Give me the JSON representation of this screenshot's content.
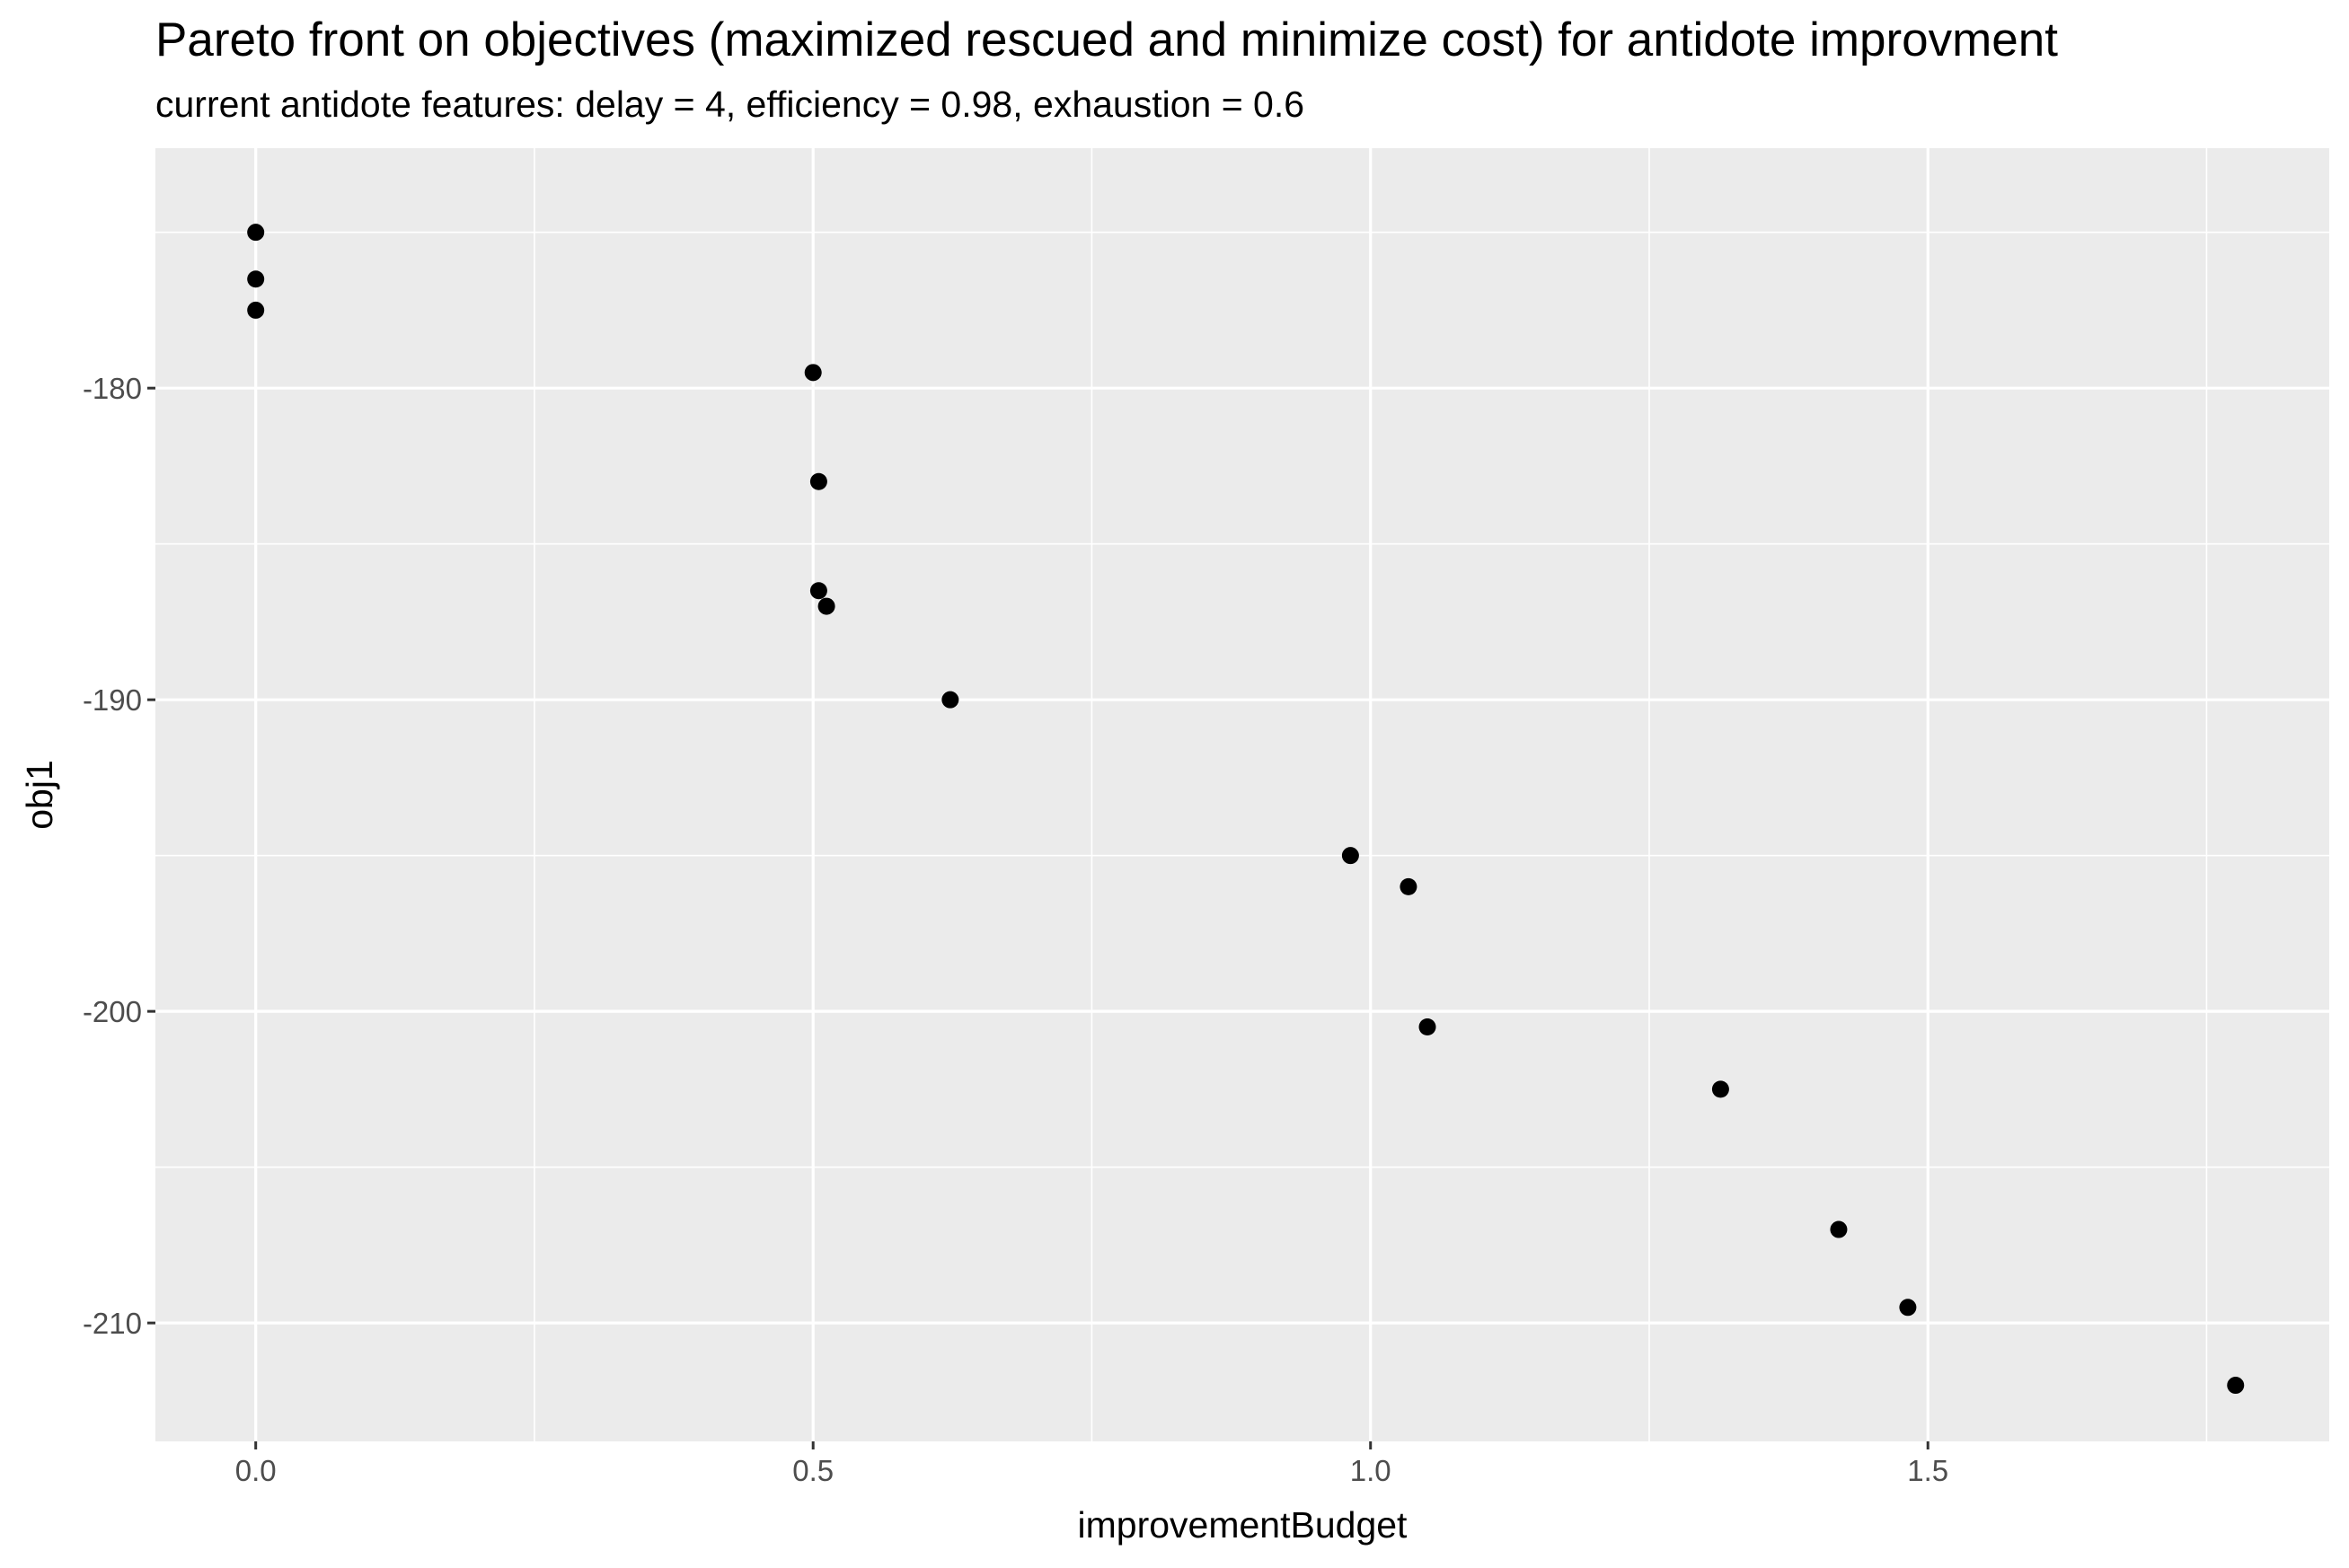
{
  "chart_data": {
    "type": "scatter",
    "title": "Pareto front on objectives (maximized rescued and minimize cost) for antidote improvment",
    "subtitle": "current antidote features: delay = 4, efficiency = 0.98, exhaustion = 0.6",
    "xlabel": "improvementBudget",
    "ylabel": "obj1",
    "xlim": [
      -0.09,
      1.86
    ],
    "ylim": [
      -213.8,
      -172.3
    ],
    "x_ticks": [
      0.0,
      0.5,
      1.0,
      1.5
    ],
    "x_tick_labels": [
      "0.0",
      "0.5",
      "1.0",
      "1.5"
    ],
    "y_ticks": [
      -180,
      -190,
      -200,
      -210
    ],
    "y_tick_labels": [
      "-180",
      "-190",
      "-200",
      "-210"
    ],
    "x_minor": [
      0.25,
      0.75,
      1.25,
      1.75
    ],
    "y_minor": [
      -175,
      -185,
      -195,
      -205
    ],
    "grid": true,
    "legend": "none",
    "colors": {
      "panel": "#ebebeb",
      "grid": "#ffffff",
      "point": "#000000",
      "tick_label": "#4d4d4d"
    },
    "series": [
      {
        "points": [
          {
            "x": 0.0,
            "y": -175.0
          },
          {
            "x": 0.0,
            "y": -176.5
          },
          {
            "x": 0.0,
            "y": -177.5
          },
          {
            "x": 0.5,
            "y": -179.5
          },
          {
            "x": 0.505,
            "y": -183.0
          },
          {
            "x": 0.505,
            "y": -186.5
          },
          {
            "x": 0.512,
            "y": -187.0
          },
          {
            "x": 0.623,
            "y": -190.0
          },
          {
            "x": 0.982,
            "y": -195.0
          },
          {
            "x": 1.034,
            "y": -196.0
          },
          {
            "x": 1.051,
            "y": -200.5
          },
          {
            "x": 1.314,
            "y": -202.5
          },
          {
            "x": 1.42,
            "y": -207.0
          },
          {
            "x": 1.482,
            "y": -209.5
          },
          {
            "x": 1.776,
            "y": -212.0
          }
        ]
      }
    ]
  }
}
